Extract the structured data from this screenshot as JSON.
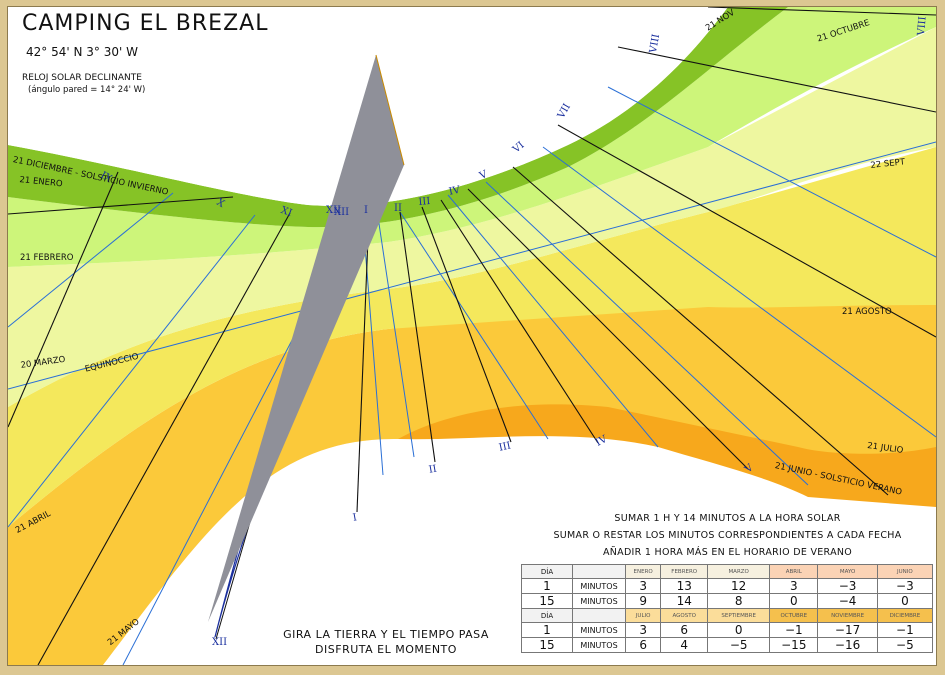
{
  "header": {
    "title": "CAMPING EL BREZAL",
    "coordinates": "42° 54' N  3° 30' W",
    "subtitle": "RELOJ SOLAR DECLINANTE",
    "wall_angle": "(ángulo pared = 14° 24' W)"
  },
  "hour_labels": [
    "VIII",
    "VII",
    "VI",
    "V",
    "IV",
    "III",
    "II",
    "I",
    "XII",
    "XI",
    "X",
    "IX",
    "VIII",
    "I",
    "II",
    "III",
    "IV",
    "V",
    "XII",
    "XII"
  ],
  "date_labels": {
    "dec": "21 DICIEMBRE - SOLSTICIO INVIERNO",
    "jan": "21 ENERO",
    "feb": "21 FEBRERO",
    "mar": "20 MARZO",
    "equinox": "EQUINOCCIO",
    "apr": "21 ABRIL",
    "may": "21 MAYO",
    "jun": "21 JUNIO - SOLSTICIO VERANO",
    "jul": "21 JULIO",
    "aug": "21 AGOSTO",
    "sep": "22 SEPT",
    "oct": "21 OCTUBRE",
    "nov": "21 NOV"
  },
  "motto": {
    "line1": "GIRA LA TIERRA Y EL TIEMPO PASA",
    "line2": "DISFRUTA EL MOMENTO"
  },
  "correction": {
    "note1": "SUMAR 1 H Y 14 MINUTOS A LA HORA SOLAR",
    "note2": "SUMAR O RESTAR LOS MINUTOS CORRESPONDIENTES A CADA FECHA",
    "note3": "AÑADIR 1 HORA MÁS EN EL HORARIO DE VERANO",
    "day_header": "DÍA",
    "minutes_label": "MINUTOS",
    "months_h1": [
      "ENERO",
      "FEBRERO",
      "MARZO",
      "ABRIL",
      "MAYO",
      "JUNIO"
    ],
    "months_h2": [
      "JULIO",
      "AGOSTO",
      "SEPTIEMBRE",
      "OCTUBRE",
      "NOVIEMBRE",
      "DICIEMBRE"
    ],
    "rows_h1": [
      {
        "day": "1",
        "values": [
          "3",
          "13",
          "12",
          "3",
          "−3",
          "−3"
        ]
      },
      {
        "day": "15",
        "values": [
          "9",
          "14",
          "8",
          "0",
          "−4",
          "0"
        ]
      }
    ],
    "rows_h2": [
      {
        "day": "1",
        "values": [
          "3",
          "6",
          "0",
          "−1",
          "−17",
          "−1"
        ]
      },
      {
        "day": "15",
        "values": [
          "6",
          "4",
          "−5",
          "−15",
          "−16",
          "−5"
        ]
      }
    ]
  },
  "colors": {
    "winter_band": "#86c326",
    "light_green": "#cdf57a",
    "pale_yellow": "#eef7a0",
    "yellow": "#f4e85c",
    "light_orange": "#fbc93a",
    "orange": "#f7a81c",
    "dark_orange": "#ed8c00",
    "gnomon": "#8f9099",
    "hour_line": "#111111",
    "half_line": "#2a6fd6",
    "frame": "#dcc792"
  }
}
